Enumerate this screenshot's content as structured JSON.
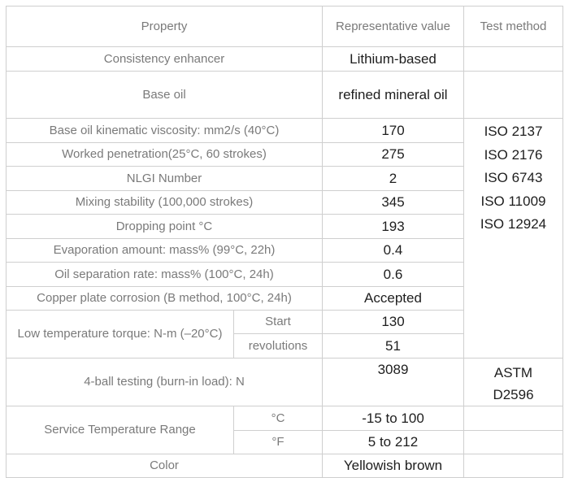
{
  "table": {
    "headers": {
      "property": "Property",
      "value": "Representative value",
      "method": "Test method"
    },
    "rows": {
      "consistency_enhancer": {
        "label": "Consistency enhancer",
        "value": "Lithium-based"
      },
      "base_oil": {
        "label": "Base oil",
        "value": "refined mineral oil"
      },
      "kinematic_viscosity": {
        "label": "Base oil kinematic viscosity: mm2/s (40°C)",
        "value": "170"
      },
      "worked_penetration": {
        "label": "Worked penetration(25°C, 60 strokes)",
        "value": "275"
      },
      "nlgi_number": {
        "label": "NLGI Number",
        "value": "2"
      },
      "mixing_stability": {
        "label": "Mixing stability (100,000 strokes)",
        "value": "345"
      },
      "dropping_point": {
        "label": "Dropping point °C",
        "value": "193"
      },
      "evaporation_amount": {
        "label": "Evaporation amount: mass% (99°C, 22h)",
        "value": "0.4"
      },
      "oil_separation": {
        "label": "Oil separation rate: mass% (100°C, 24h)",
        "value": "0.6"
      },
      "copper_corrosion": {
        "label": "Copper plate corrosion (B method, 100°C, 24h)",
        "value": "Accepted"
      },
      "low_temp_torque": {
        "label": "Low temperature torque: N-m (–20°C)",
        "start_label": "Start",
        "start_value": "130",
        "revolutions_label": "revolutions",
        "revolutions_value": "51"
      },
      "four_ball": {
        "label": "4-ball testing (burn-in load): N",
        "value": "3089",
        "method_line1": "ASTM",
        "method_line2": "D2596"
      },
      "service_temp": {
        "label": "Service Temperature Range",
        "celsius_unit": "°C",
        "celsius_value": "-15 to 100",
        "fahrenheit_unit": "°F",
        "fahrenheit_value": "5 to 212"
      },
      "color": {
        "label": "Color",
        "value": "Yellowish brown"
      }
    },
    "methods": [
      "ISO 2137",
      "ISO 2176",
      "ISO 6743",
      "ISO 11009",
      "ISO 12924"
    ]
  }
}
